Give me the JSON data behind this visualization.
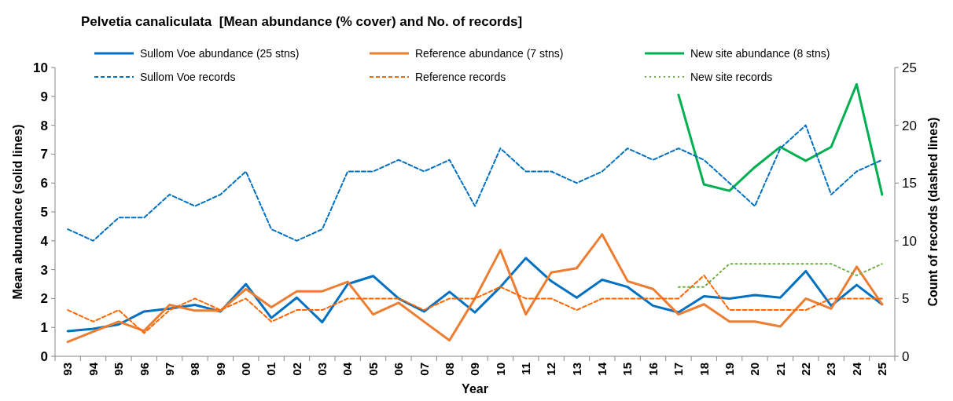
{
  "chart_data": {
    "type": "line",
    "title": "Pelvetia canaliculata  [Mean abundance (% cover) and No. of records]",
    "xlabel": "Year",
    "ylabel": "Mean abundance (solid lines)",
    "y2label": "Count of records (dashed lines)",
    "categories": [
      "93",
      "94",
      "95",
      "96",
      "97",
      "98",
      "99",
      "00",
      "01",
      "02",
      "03",
      "04",
      "05",
      "06",
      "07",
      "08",
      "09",
      "10",
      "11",
      "12",
      "13",
      "14",
      "15",
      "16",
      "17",
      "18",
      "19",
      "20",
      "21",
      "22",
      "23",
      "24",
      "25"
    ],
    "ylim": [
      0,
      10
    ],
    "yticks": [
      0,
      1,
      2,
      3,
      4,
      5,
      6,
      7,
      8,
      9,
      10
    ],
    "y2lim": [
      0,
      25
    ],
    "y2ticks": [
      0,
      5,
      10,
      15,
      20,
      25
    ],
    "legend": "top",
    "grid": false,
    "marker": "none",
    "series": [
      {
        "name": "Sullom Voe abundance (25 stns)",
        "color": "#0070c0",
        "line_style": "solid",
        "values": [
          0.87,
          0.95,
          1.1,
          1.55,
          1.65,
          1.78,
          1.55,
          2.5,
          1.33,
          2.03,
          1.18,
          2.5,
          2.78,
          2.0,
          1.55,
          2.23,
          1.52,
          2.4,
          3.4,
          2.6,
          2.03,
          2.65,
          2.4,
          1.75,
          1.52,
          2.08,
          2.0,
          2.12,
          2.03,
          2.95,
          1.75,
          2.47,
          1.8
        ]
      },
      {
        "name": "Reference abundance (7 stns)",
        "color": "#ed7d31",
        "line_style": "solid",
        "values": [
          0.5,
          0.85,
          1.2,
          0.88,
          1.78,
          1.58,
          1.58,
          2.33,
          1.7,
          2.25,
          2.25,
          2.58,
          1.45,
          1.85,
          1.2,
          0.55,
          2.0,
          3.68,
          1.45,
          2.9,
          3.05,
          4.22,
          2.6,
          2.33,
          1.45,
          1.8,
          1.2,
          1.2,
          1.03,
          2.0,
          1.65,
          3.1,
          1.8
        ]
      },
      {
        "name": "New site abundance (8 stns)",
        "color": "#00b050",
        "line_style": "solid",
        "values": [
          null,
          null,
          null,
          null,
          null,
          null,
          null,
          null,
          null,
          null,
          null,
          null,
          null,
          null,
          null,
          null,
          null,
          null,
          null,
          null,
          null,
          null,
          null,
          null,
          9.05,
          5.95,
          5.73,
          6.55,
          7.25,
          6.77,
          7.25,
          9.42,
          5.6
        ]
      },
      {
        "name": "Sullom Voe records",
        "color": "#0070c0",
        "line_style": "dashed",
        "axis": "y2",
        "values": [
          11,
          10,
          12,
          12,
          14,
          13,
          14,
          16,
          11,
          10,
          11,
          16,
          16,
          17,
          16,
          17,
          13,
          18,
          16,
          16,
          15,
          16,
          18,
          17,
          18,
          17,
          15,
          13,
          18,
          20,
          14,
          16,
          17
        ]
      },
      {
        "name": "Reference records",
        "color": "#ff6600",
        "line_style": "dashed",
        "axis": "y2",
        "values": [
          4,
          3,
          4,
          2,
          4,
          5,
          4,
          5,
          3,
          4,
          4,
          5,
          5,
          5,
          4,
          5,
          5,
          6,
          5,
          5,
          4,
          5,
          5,
          5,
          5,
          7,
          4,
          4,
          4,
          4,
          5,
          5,
          5
        ]
      },
      {
        "name": "New site records",
        "color": "#70ad47",
        "line_style": "dotted",
        "axis": "y2",
        "values": [
          null,
          null,
          null,
          null,
          null,
          null,
          null,
          null,
          null,
          null,
          null,
          null,
          null,
          null,
          null,
          null,
          null,
          null,
          null,
          null,
          null,
          null,
          null,
          null,
          6,
          6,
          8,
          8,
          8,
          8,
          8,
          7,
          8
        ]
      }
    ]
  }
}
